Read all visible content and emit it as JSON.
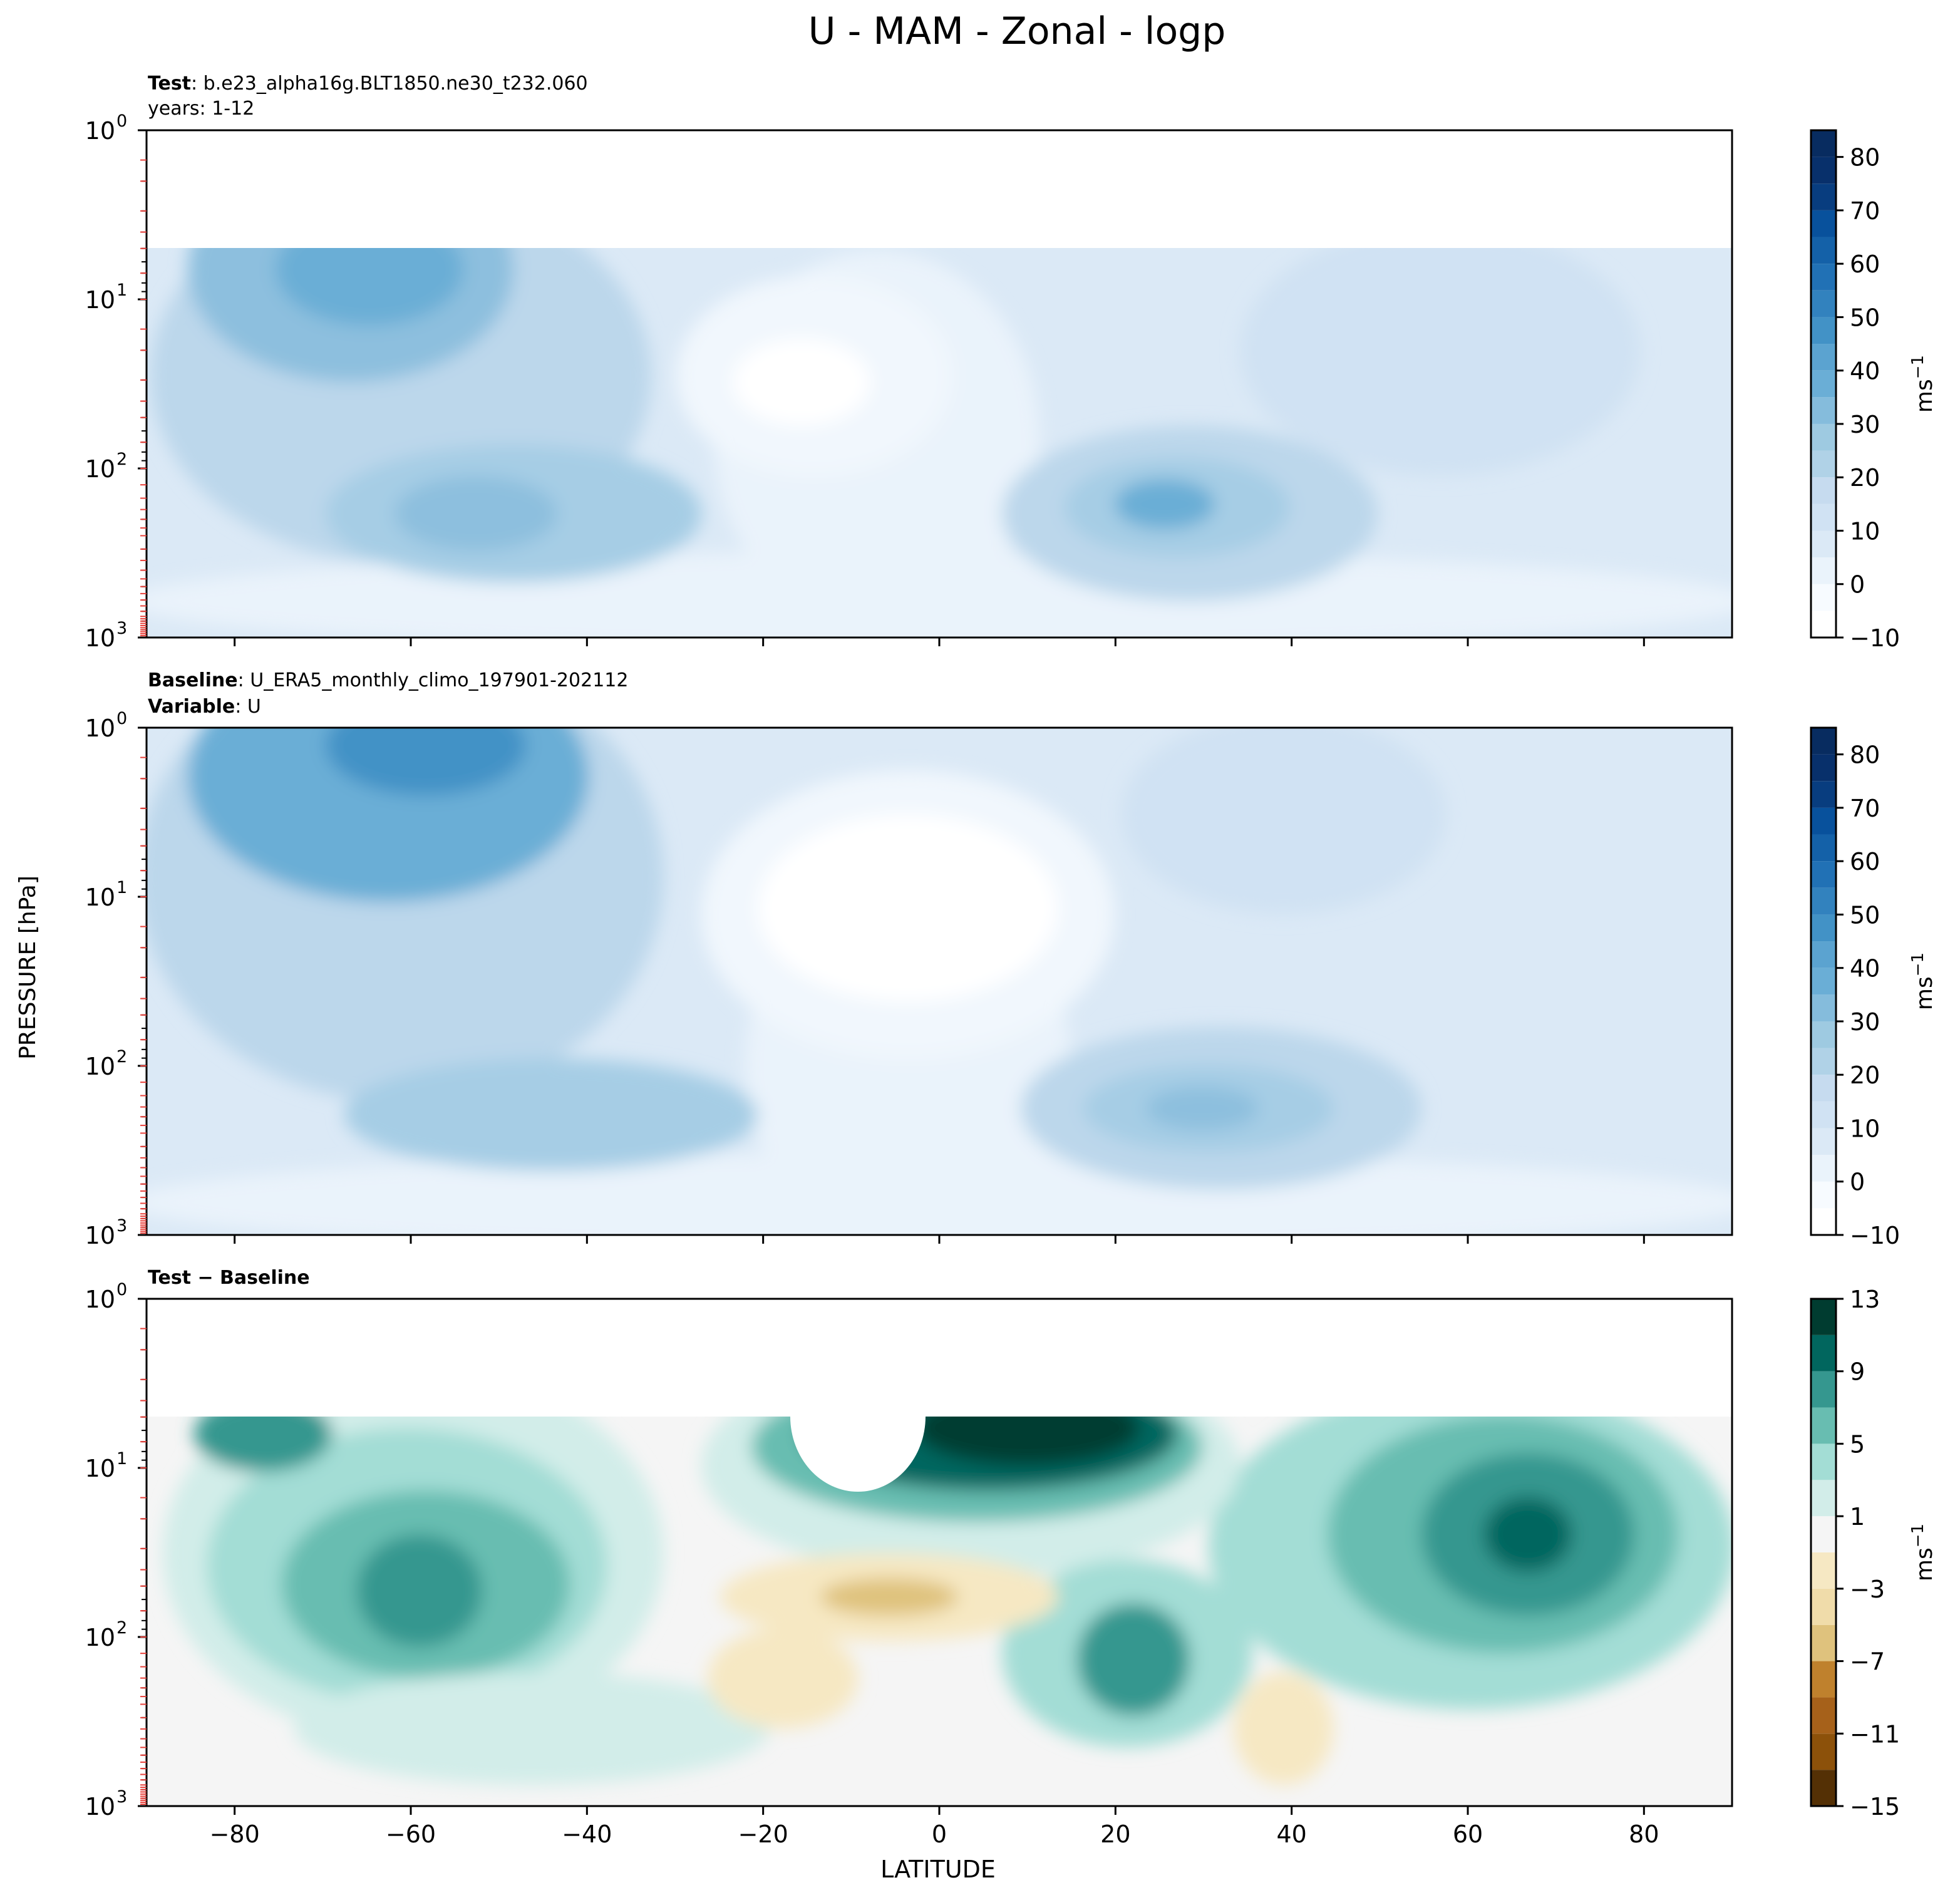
{
  "title": "U - MAM - Zonal - logp",
  "y_label": "PRESSURE [hPa]",
  "x_label": "LATITUDE",
  "x_tick_labels": [
    "−80",
    "−60",
    "−40",
    "−20",
    "0",
    "20",
    "40",
    "60",
    "80"
  ],
  "y_tick_labels": [
    "10",
    "10",
    "10",
    "10"
  ],
  "y_tick_exponents": [
    "0",
    "1",
    "2",
    "3"
  ],
  "panels": [
    {
      "caption_line1_bold": "Test",
      "caption_line1_text": ": b.e23_alpha16g.BLT1850.ne30_t232.060",
      "caption_line2_bold": "",
      "caption_line2_text": "years: 1-12",
      "colorbar_ticks": [
        "80",
        "70",
        "60",
        "50",
        "40",
        "30",
        "20",
        "10",
        "0",
        "−10"
      ],
      "colorbar_unit": "ms",
      "colorbar_unit_exp": "−1"
    },
    {
      "caption_line1_bold": "Baseline",
      "caption_line1_text": ": U_ERA5_monthly_climo_197901-202112",
      "caption_line2_bold": "Variable",
      "caption_line2_text": ": U",
      "colorbar_ticks": [
        "80",
        "70",
        "60",
        "50",
        "40",
        "30",
        "20",
        "10",
        "0",
        "−10"
      ],
      "colorbar_unit": "ms",
      "colorbar_unit_exp": "−1"
    },
    {
      "caption_line1_bold": "Test − Baseline",
      "caption_line1_text": "",
      "caption_line2_bold": "",
      "caption_line2_text": "",
      "colorbar_ticks": [
        "13",
        "9",
        "5",
        "1",
        "−3",
        "−7",
        "−11",
        "−15"
      ],
      "colorbar_unit": "ms",
      "colorbar_unit_exp": "−1"
    }
  ],
  "chart_data": [
    {
      "type": "heatmap",
      "name": "test",
      "x_range": [
        -90,
        90
      ],
      "y_range_hpa": [
        1,
        1000
      ],
      "y_scale": "log",
      "y_inverted": true,
      "colormap": "Blues",
      "levels": [
        -10,
        -5,
        0,
        5,
        10,
        15,
        20,
        25,
        30,
        35,
        40,
        45,
        50,
        55,
        60,
        65,
        70,
        75,
        80,
        85
      ],
      "data_top_hpa": 5,
      "features": [
        {
          "lat": -60,
          "p": 6,
          "u": 48
        },
        {
          "lat": -58,
          "p": 200,
          "u": 36
        },
        {
          "lat": 28,
          "p": 170,
          "u": 40
        },
        {
          "lat": -15,
          "p": 25,
          "u": -4
        }
      ]
    },
    {
      "type": "heatmap",
      "name": "baseline",
      "x_range": [
        -90,
        90
      ],
      "y_range_hpa": [
        1,
        1000
      ],
      "y_scale": "log",
      "y_inverted": true,
      "colormap": "Blues",
      "levels": [
        -10,
        -5,
        0,
        5,
        10,
        15,
        20,
        25,
        30,
        35,
        40,
        45,
        50,
        55,
        60,
        65,
        70,
        75,
        80,
        85
      ],
      "data_top_hpa": 1,
      "features": [
        {
          "lat": -58,
          "p": 1.5,
          "u": 56
        },
        {
          "lat": -50,
          "p": 190,
          "u": 31
        },
        {
          "lat": 30,
          "p": 180,
          "u": 34
        },
        {
          "lat": -5,
          "p": 12,
          "u": -5
        }
      ]
    },
    {
      "type": "heatmap",
      "name": "test-minus-baseline",
      "x_range": [
        -90,
        90
      ],
      "y_range_hpa": [
        1,
        1000
      ],
      "y_scale": "log",
      "y_inverted": true,
      "colormap": "BrBG",
      "levels": [
        -15,
        -13,
        -11,
        -9,
        -7,
        -5,
        -3,
        -1,
        1,
        3,
        5,
        7,
        9,
        11,
        13
      ],
      "data_top_hpa": 5,
      "features": [
        {
          "lat": -60,
          "p": 60,
          "u": 9
        },
        {
          "lat": 65,
          "p": 25,
          "u": 11
        },
        {
          "lat": 10,
          "p": 8,
          "u": 14
        },
        {
          "lat": -8,
          "p": 70,
          "u": -4
        },
        {
          "lat": 22,
          "p": 150,
          "u": 8
        },
        {
          "lat": 40,
          "p": 250,
          "u": -3
        }
      ]
    }
  ]
}
